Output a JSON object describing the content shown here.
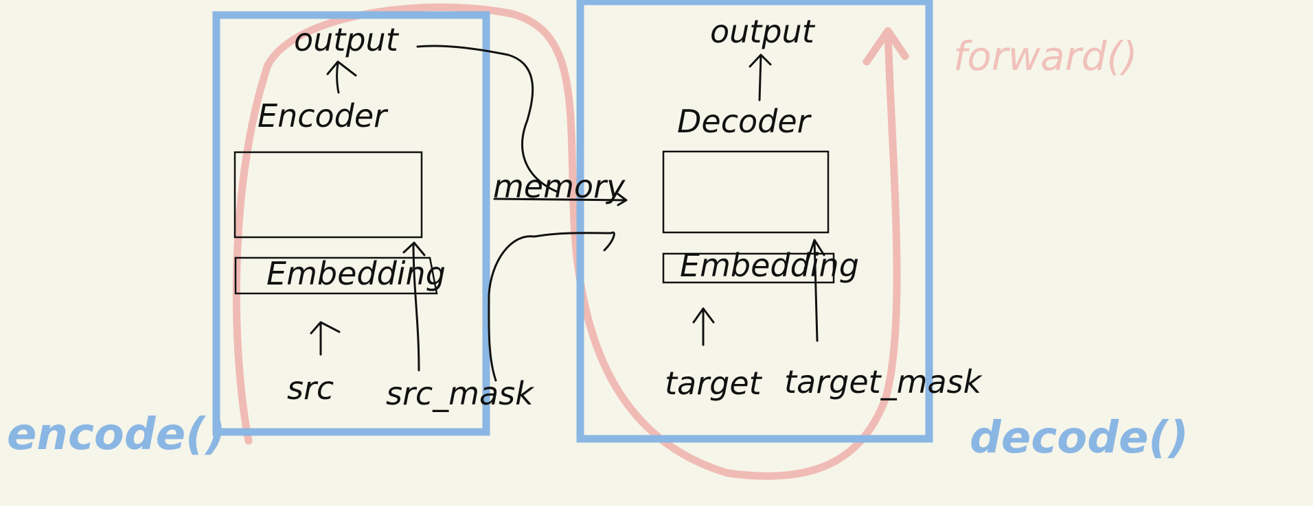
{
  "colors": {
    "background": "#f6f5e9",
    "frame_blue": "#8ab6e3",
    "flow_red": "#eeb0ab",
    "ink": "#111111"
  },
  "encoder_side": {
    "output_label": "output",
    "block_label": "Encoder",
    "embedding_label": "Embedding",
    "src_label": "src",
    "src_mask_label": "src_mask",
    "function_label": "encode()"
  },
  "memory_label": "memory",
  "decoder_side": {
    "output_label": "output",
    "block_label": "Decoder",
    "embedding_label": "Embedding",
    "target_label": "target",
    "target_mask_label": "target_mask",
    "function_label": "decode()"
  },
  "forward_label": "forward()"
}
